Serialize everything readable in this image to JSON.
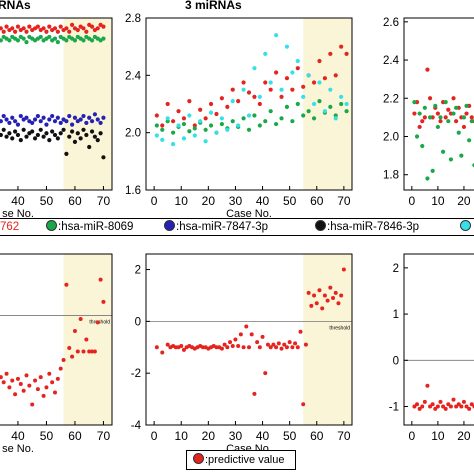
{
  "titles": {
    "left_top": "RNAs",
    "mid_top": "3 miRNAs"
  },
  "legend": {
    "items": [
      {
        "label": "762",
        "color": "#e52420"
      },
      {
        "label": ":hsa-miR-8069",
        "color": "#1aa84a"
      },
      {
        "label": ":hsa-miR-7847-3p",
        "color": "#2421b4"
      },
      {
        "label": ":hsa-miR-7846-3p",
        "color": "#111111"
      },
      {
        "label": "",
        "color": "#36e0e8"
      }
    ],
    "predictive": {
      "label": ":predictive value",
      "color": "#e52420"
    }
  },
  "chart_data": [
    {
      "panel": "top-left",
      "type": "scatter",
      "title": "RNAs",
      "xlabel": "se No.",
      "x_ticks": [
        "40",
        "50",
        "60",
        "70"
      ],
      "y_ticks": [],
      "xlim": [
        33,
        73
      ],
      "ylim": [
        0,
        1
      ],
      "highlight_x": [
        56,
        73
      ],
      "series": [
        {
          "color": "#e52420",
          "x": [
            33,
            34,
            35,
            36,
            37,
            38,
            39,
            40,
            41,
            42,
            43,
            44,
            45,
            46,
            47,
            48,
            49,
            50,
            51,
            52,
            53,
            54,
            55,
            56,
            57,
            58,
            59,
            60,
            61,
            62,
            63,
            64,
            65,
            66,
            67,
            68,
            69,
            70
          ],
          "y": [
            0.93,
            0.94,
            0.92,
            0.95,
            0.93,
            0.94,
            0.92,
            0.95,
            0.93,
            0.94,
            0.92,
            0.95,
            0.93,
            0.94,
            0.95,
            0.93,
            0.94,
            0.92,
            0.95,
            0.93,
            0.94,
            0.92,
            0.95,
            0.93,
            0.94,
            0.92,
            0.96,
            0.94,
            0.93,
            0.95,
            0.94,
            0.92,
            0.96,
            0.95,
            0.93,
            0.94,
            0.96,
            0.95
          ]
        },
        {
          "color": "#1aa84a",
          "x": [
            33,
            34,
            35,
            36,
            37,
            38,
            39,
            40,
            41,
            42,
            43,
            44,
            45,
            46,
            47,
            48,
            49,
            50,
            51,
            52,
            53,
            54,
            55,
            56,
            57,
            58,
            59,
            60,
            61,
            62,
            63,
            64,
            65,
            66,
            67,
            68,
            69,
            70
          ],
          "y": [
            0.88,
            0.87,
            0.89,
            0.88,
            0.87,
            0.89,
            0.88,
            0.87,
            0.89,
            0.88,
            0.86,
            0.89,
            0.88,
            0.87,
            0.88,
            0.89,
            0.87,
            0.88,
            0.89,
            0.87,
            0.88,
            0.86,
            0.89,
            0.88,
            0.87,
            0.89,
            0.88,
            0.87,
            0.89,
            0.88,
            0.87,
            0.89,
            0.88,
            0.87,
            0.89,
            0.88,
            0.87,
            0.88
          ]
        },
        {
          "color": "#2421b4",
          "x": [
            33,
            34,
            35,
            36,
            37,
            38,
            39,
            40,
            41,
            42,
            43,
            44,
            45,
            46,
            47,
            48,
            49,
            50,
            51,
            52,
            53,
            54,
            55,
            56,
            57,
            58,
            59,
            60,
            61,
            62,
            63,
            64,
            65,
            66,
            67,
            68,
            69,
            70
          ],
          "y": [
            0.42,
            0.4,
            0.43,
            0.41,
            0.39,
            0.42,
            0.4,
            0.38,
            0.43,
            0.41,
            0.42,
            0.4,
            0.39,
            0.41,
            0.43,
            0.4,
            0.42,
            0.38,
            0.41,
            0.43,
            0.4,
            0.42,
            0.39,
            0.41,
            0.4,
            0.43,
            0.38,
            0.42,
            0.4,
            0.41,
            0.43,
            0.39,
            0.42,
            0.4,
            0.44,
            0.41,
            0.39,
            0.42
          ]
        },
        {
          "color": "#111111",
          "x": [
            33,
            34,
            35,
            36,
            37,
            38,
            39,
            40,
            41,
            42,
            43,
            44,
            45,
            46,
            47,
            48,
            49,
            50,
            51,
            52,
            53,
            54,
            55,
            56,
            57,
            58,
            59,
            60,
            61,
            62,
            63,
            64,
            65,
            66,
            67,
            68,
            69,
            70
          ],
          "y": [
            0.34,
            0.32,
            0.35,
            0.31,
            0.33,
            0.3,
            0.34,
            0.32,
            0.29,
            0.35,
            0.31,
            0.33,
            0.34,
            0.3,
            0.32,
            0.35,
            0.31,
            0.33,
            0.29,
            0.34,
            0.32,
            0.3,
            0.33,
            0.35,
            0.21,
            0.31,
            0.34,
            0.28,
            0.33,
            0.3,
            0.35,
            0.32,
            0.25,
            0.34,
            0.31,
            0.29,
            0.33,
            0.19
          ]
        }
      ]
    },
    {
      "panel": "top-middle",
      "type": "scatter",
      "title": "3 miRNAs",
      "xlabel": "Case No.",
      "x_ticks": [
        "0",
        "10",
        "20",
        "30",
        "40",
        "50",
        "60",
        "70"
      ],
      "y_ticks": [
        "1.6",
        "2.0",
        "2.4",
        "2.8"
      ],
      "xlim": [
        -3,
        73
      ],
      "ylim": [
        1.6,
        2.8
      ],
      "highlight_x": [
        55,
        73
      ],
      "series": [
        {
          "color": "#e52420",
          "x": [
            1,
            3,
            5,
            7,
            9,
            11,
            13,
            15,
            17,
            19,
            21,
            23,
            25,
            27,
            29,
            31,
            33,
            35,
            37,
            39,
            41,
            43,
            45,
            47,
            49,
            51,
            53,
            55,
            57,
            59,
            61,
            63,
            65,
            67,
            69,
            71
          ],
          "y": [
            2.12,
            2.05,
            2.2,
            2.08,
            2.15,
            2.1,
            2.22,
            2.05,
            2.16,
            2.1,
            2.2,
            2.13,
            2.24,
            2.18,
            2.3,
            2.22,
            2.35,
            2.28,
            2.25,
            2.2,
            2.35,
            2.3,
            2.42,
            2.25,
            2.38,
            2.3,
            2.45,
            2.32,
            2.4,
            2.35,
            2.5,
            2.38,
            2.55,
            2.4,
            2.6,
            2.55
          ]
        },
        {
          "color": "#1aa84a",
          "x": [
            1,
            3,
            5,
            7,
            9,
            11,
            13,
            15,
            17,
            19,
            21,
            23,
            25,
            27,
            29,
            31,
            33,
            35,
            37,
            39,
            41,
            43,
            45,
            47,
            49,
            51,
            53,
            55,
            57,
            59,
            61,
            63,
            65,
            67,
            69,
            71
          ],
          "y": [
            2.05,
            2.02,
            2.08,
            2.0,
            2.04,
            2.06,
            2.01,
            2.03,
            2.07,
            2.02,
            2.05,
            2.0,
            2.06,
            2.03,
            2.08,
            2.04,
            2.1,
            2.02,
            2.12,
            2.05,
            2.08,
            2.15,
            2.06,
            2.1,
            2.18,
            2.08,
            2.2,
            2.12,
            2.15,
            2.1,
            2.22,
            2.14,
            2.18,
            2.12,
            2.2,
            2.15
          ]
        },
        {
          "color": "#36e0e8",
          "x": [
            1,
            3,
            5,
            7,
            9,
            11,
            13,
            15,
            17,
            19,
            21,
            23,
            25,
            27,
            29,
            31,
            33,
            35,
            37,
            39,
            41,
            43,
            45,
            47,
            49,
            51,
            53,
            55,
            57,
            59,
            61,
            63,
            65,
            67,
            69,
            71
          ],
          "y": [
            1.98,
            1.95,
            2.1,
            1.92,
            2.05,
            1.96,
            2.12,
            1.98,
            2.08,
            1.94,
            2.14,
            2.0,
            2.1,
            2.02,
            2.22,
            2.05,
            2.3,
            2.12,
            2.45,
            2.25,
            2.55,
            2.35,
            2.68,
            2.3,
            2.6,
            2.42,
            2.5,
            2.25,
            2.4,
            2.2,
            2.35,
            2.15,
            2.3,
            2.1,
            2.25,
            2.2
          ]
        }
      ]
    },
    {
      "panel": "top-right",
      "type": "scatter",
      "title": "",
      "xlabel": "",
      "x_ticks": [
        "0",
        "10",
        "20"
      ],
      "y_ticks": [
        "1.8",
        "2.0",
        "2.2",
        "2.4",
        "2.6"
      ],
      "xlim": [
        -3,
        30
      ],
      "ylim": [
        1.72,
        2.62
      ],
      "highlight_x": [],
      "series": [
        {
          "color": "#e52420",
          "x": [
            1,
            2,
            3,
            4,
            5,
            6,
            7,
            8,
            9,
            10,
            11,
            12,
            13,
            14,
            15,
            16,
            17,
            18,
            19,
            20,
            21,
            22,
            23,
            24,
            25,
            26,
            27,
            28
          ],
          "y": [
            2.12,
            2.18,
            2.05,
            2.08,
            2.1,
            2.35,
            2.2,
            2.1,
            2.15,
            2.12,
            2.08,
            2.18,
            2.1,
            2.14,
            2.12,
            2.2,
            2.08,
            2.15,
            2.1,
            2.05,
            2.12,
            2.16,
            2.1,
            2.08,
            2.12,
            2.15,
            2.1,
            2.12
          ]
        },
        {
          "color": "#1aa84a",
          "x": [
            1,
            2,
            3,
            4,
            5,
            6,
            7,
            8,
            9,
            10,
            11,
            12,
            13,
            14,
            15,
            16,
            17,
            18,
            19,
            20,
            21,
            22,
            23,
            24,
            25,
            26,
            27,
            28
          ],
          "y": [
            2.18,
            2.0,
            2.12,
            1.95,
            2.15,
            1.78,
            2.1,
            1.82,
            2.16,
            2.05,
            2.1,
            1.92,
            2.18,
            2.08,
            1.88,
            2.12,
            2.15,
            2.02,
            1.9,
            2.1,
            2.16,
            1.98,
            2.08,
            1.85,
            2.14,
            2.1,
            2.0,
            2.16
          ]
        }
      ]
    },
    {
      "panel": "bottom-left",
      "type": "scatter",
      "title": "",
      "xlabel": "se No.",
      "x_ticks": [
        "40",
        "50",
        "60",
        "70"
      ],
      "y_ticks": [],
      "xlim": [
        33,
        73
      ],
      "ylim": [
        0,
        1
      ],
      "highlight_x": [
        56,
        73
      ],
      "threshold_label": "threshold",
      "series": [
        {
          "color": "#e52420",
          "x": [
            33,
            34,
            35,
            36,
            37,
            38,
            39,
            40,
            41,
            42,
            43,
            44,
            45,
            46,
            47,
            48,
            49,
            50,
            51,
            52,
            53,
            54,
            55,
            56,
            57,
            58,
            59,
            60,
            61,
            62,
            63,
            64,
            65,
            66,
            67,
            68,
            69,
            70
          ],
          "y": [
            0.32,
            0.28,
            0.25,
            0.3,
            0.22,
            0.26,
            0.18,
            0.27,
            0.24,
            0.2,
            0.29,
            0.23,
            0.12,
            0.26,
            0.21,
            0.28,
            0.17,
            0.22,
            0.3,
            0.25,
            0.19,
            0.27,
            0.33,
            0.38,
            0.82,
            0.45,
            0.4,
            0.55,
            0.43,
            0.62,
            0.43,
            0.5,
            0.43,
            0.43,
            0.43,
            0.6,
            0.85,
            0.72
          ]
        }
      ]
    },
    {
      "panel": "bottom-middle",
      "type": "scatter",
      "title": "",
      "xlabel": "Case No.",
      "x_ticks": [
        "0",
        "10",
        "20",
        "30",
        "40",
        "50",
        "60",
        "70"
      ],
      "y_ticks": [
        "-4",
        "-2",
        "0",
        "2"
      ],
      "xlim": [
        -3,
        73
      ],
      "ylim": [
        -4,
        2.6
      ],
      "highlight_x": [
        55,
        73
      ],
      "threshold_label": "threshold",
      "series": [
        {
          "color": "#e52420",
          "x": [
            1,
            3,
            5,
            6,
            7,
            8,
            9,
            10,
            11,
            12,
            13,
            14,
            15,
            16,
            17,
            18,
            19,
            20,
            21,
            22,
            23,
            24,
            25,
            26,
            27,
            28,
            29,
            30,
            31,
            32,
            33,
            34,
            35,
            36,
            37,
            38,
            39,
            40,
            41,
            42,
            43,
            44,
            45,
            46,
            47,
            48,
            49,
            50,
            51,
            52,
            53,
            54,
            55,
            56,
            57,
            58,
            59,
            60,
            61,
            62,
            63,
            64,
            65,
            66,
            67,
            68,
            69,
            70
          ],
          "y": [
            -1.0,
            -1.2,
            -0.9,
            -1.0,
            -0.95,
            -1.0,
            -1.0,
            -0.95,
            -1.1,
            -1.0,
            -0.95,
            -1.0,
            -1.05,
            -1.0,
            -0.95,
            -1.0,
            -1.0,
            -1.05,
            -1.0,
            -0.95,
            -1.0,
            -1.0,
            -1.05,
            -0.9,
            -1.0,
            -0.8,
            -0.95,
            -0.7,
            -0.95,
            -0.5,
            -1.0,
            -0.2,
            -1.0,
            -0.5,
            -2.8,
            -0.8,
            -1.0,
            -0.6,
            -2.0,
            -0.9,
            -1.0,
            -0.9,
            -1.0,
            -0.85,
            -1.05,
            -0.9,
            -1.0,
            -0.8,
            -1.0,
            -0.85,
            -1.0,
            -0.4,
            -3.2,
            -0.9,
            1.1,
            0.6,
            1.0,
            0.7,
            1.2,
            0.5,
            1.0,
            0.8,
            1.3,
            0.9,
            1.1,
            0.7,
            1.0,
            2.0
          ]
        }
      ]
    },
    {
      "panel": "bottom-right",
      "type": "scatter",
      "title": "",
      "xlabel": "",
      "x_ticks": [
        "0",
        "10",
        "20"
      ],
      "y_ticks": [
        "-1",
        "0",
        "1",
        "2"
      ],
      "xlim": [
        -3,
        30
      ],
      "ylim": [
        -1.4,
        2.3
      ],
      "highlight_x": [],
      "series": [
        {
          "color": "#e52420",
          "x": [
            1,
            2,
            3,
            4,
            5,
            6,
            7,
            8,
            9,
            10,
            11,
            12,
            13,
            14,
            15,
            16,
            17,
            18,
            19,
            20,
            21,
            22,
            23,
            24,
            25,
            26,
            27,
            28
          ],
          "y": [
            -1.0,
            -0.95,
            -1.05,
            -1.0,
            -0.9,
            -0.55,
            -1.0,
            -0.95,
            -1.05,
            -1.0,
            -0.9,
            -1.0,
            -1.05,
            -0.95,
            -1.0,
            -0.85,
            -1.0,
            -0.95,
            -1.0,
            -0.9,
            -1.0,
            -1.05,
            -0.95,
            -1.0,
            -0.9,
            -1.0,
            -0.95,
            -1.0
          ]
        }
      ]
    }
  ]
}
